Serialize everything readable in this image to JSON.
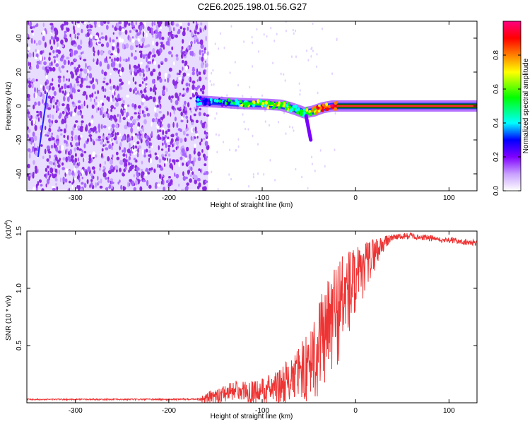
{
  "title": "C2E6.2025.198.01.56.G27",
  "chart_data": [
    {
      "type": "heatmap",
      "xlabel": "Height of straight line (km)",
      "ylabel": "Frequency (Hz)",
      "xlim": [
        -352,
        130
      ],
      "ylim": [
        -50,
        50
      ],
      "xticks": [
        -300,
        -200,
        -100,
        0,
        100
      ],
      "xtick_labels": [
        "-300",
        "-200",
        "-100",
        "0",
        "100"
      ],
      "yticks": [
        -40,
        -20,
        0,
        20,
        40
      ],
      "ytick_labels": [
        "-40",
        "-20",
        "0",
        "20",
        "40"
      ],
      "grid": false,
      "colorbar": {
        "label": "Normalized spectral amplitude",
        "range": [
          0,
          1
        ],
        "ticks": [
          0.0,
          0.2,
          0.4,
          0.6,
          0.8
        ],
        "tick_labels": [
          "0.0",
          "0.2",
          "0.4",
          "0.6",
          "0.8"
        ],
        "colormap": [
          "#ffffff",
          "#c8a0ff",
          "#8000ff",
          "#0000ff",
          "#00ffff",
          "#00ff00",
          "#ffff00",
          "#ff8000",
          "#ff0000",
          "#ff0080"
        ]
      },
      "noise_region": {
        "x": [
          -352,
          -158
        ],
        "y": [
          -50,
          50
        ],
        "amplitude": 0.2
      },
      "signal_trace": {
        "x": [
          -170,
          -155,
          -140,
          -125,
          -110,
          -95,
          -80,
          -70,
          -62,
          -55,
          -45,
          -35,
          -25,
          -20,
          -12,
          0,
          130
        ],
        "y": [
          3,
          2.5,
          2,
          1.5,
          1.2,
          1,
          0.5,
          -1,
          -2.5,
          -4,
          -3,
          -1,
          0,
          0,
          0,
          0,
          0
        ],
        "amplitude": [
          0.3,
          0.35,
          0.4,
          0.5,
          0.55,
          0.6,
          0.65,
          0.6,
          0.55,
          0.5,
          0.7,
          0.8,
          0.85,
          0.9,
          0.95,
          0.98,
          1.0
        ]
      },
      "spur": {
        "x": [
          -53,
          -48
        ],
        "y": [
          -6,
          -20
        ]
      },
      "streak": {
        "x": [
          -340,
          -330
        ],
        "y": [
          -30,
          8
        ]
      }
    },
    {
      "type": "line",
      "xlabel": "Height of straight line (km)",
      "ylabel": "SNR (10 * v/v)",
      "y_scale_label": "(x10",
      "y_scale_exp": "4",
      "y_scale_close": ")",
      "xlim": [
        -352,
        130
      ],
      "ylim": [
        0,
        15000
      ],
      "xticks": [
        -300,
        -200,
        -100,
        0,
        100
      ],
      "xtick_labels": [
        "-300",
        "-200",
        "-100",
        "0",
        "100"
      ],
      "yticks": [
        5000,
        10000,
        15000
      ],
      "ytick_labels": [
        "0.5",
        "1.0",
        "1.5"
      ],
      "grid": false,
      "series_color": "#ee3333",
      "envelope": {
        "x": [
          -352,
          -200,
          -160,
          -145,
          -130,
          -110,
          -95,
          -80,
          -65,
          -50,
          -40,
          -30,
          -20,
          -10,
          0,
          10,
          20,
          30,
          40,
          60,
          80,
          100,
          130
        ],
        "y": [
          300,
          300,
          350,
          800,
          1200,
          1000,
          1200,
          1600,
          2400,
          3500,
          5000,
          6500,
          8000,
          9500,
          10500,
          12000,
          13000,
          14000,
          14500,
          14600,
          14400,
          14200,
          14000
        ]
      },
      "noise_amplitude": {
        "x": [
          -352,
          -170,
          -150,
          -120,
          -90,
          -60,
          -40,
          -20,
          0,
          20,
          40,
          130
        ],
        "y": [
          60,
          80,
          900,
          900,
          1400,
          2500,
          4500,
          5000,
          3500,
          1500,
          300,
          300
        ]
      }
    }
  ]
}
